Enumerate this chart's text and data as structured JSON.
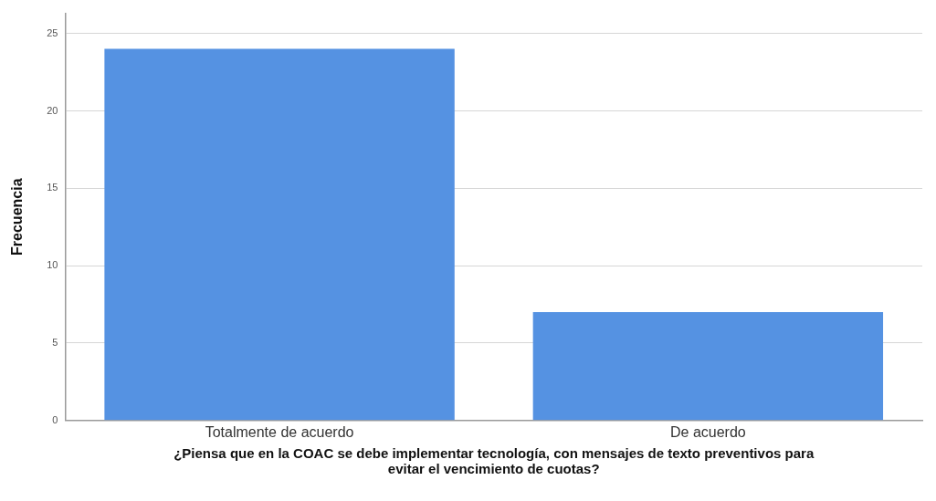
{
  "chart_data": {
    "type": "bar",
    "xlabel": "¿Piensa que en la COAC se debe implementar tecnología, con mensajes de texto preventivos para evitar el vencimiento de cuotas?",
    "ylabel": "Frecuencia",
    "categories": [
      "Totalmente de acuerdo",
      "De acuerdo"
    ],
    "values": [
      24,
      7
    ],
    "color": "#5592e2",
    "ylim": [
      0,
      26.3
    ],
    "yticks": [
      0,
      5,
      10,
      15,
      20,
      25
    ],
    "grid": "y"
  }
}
